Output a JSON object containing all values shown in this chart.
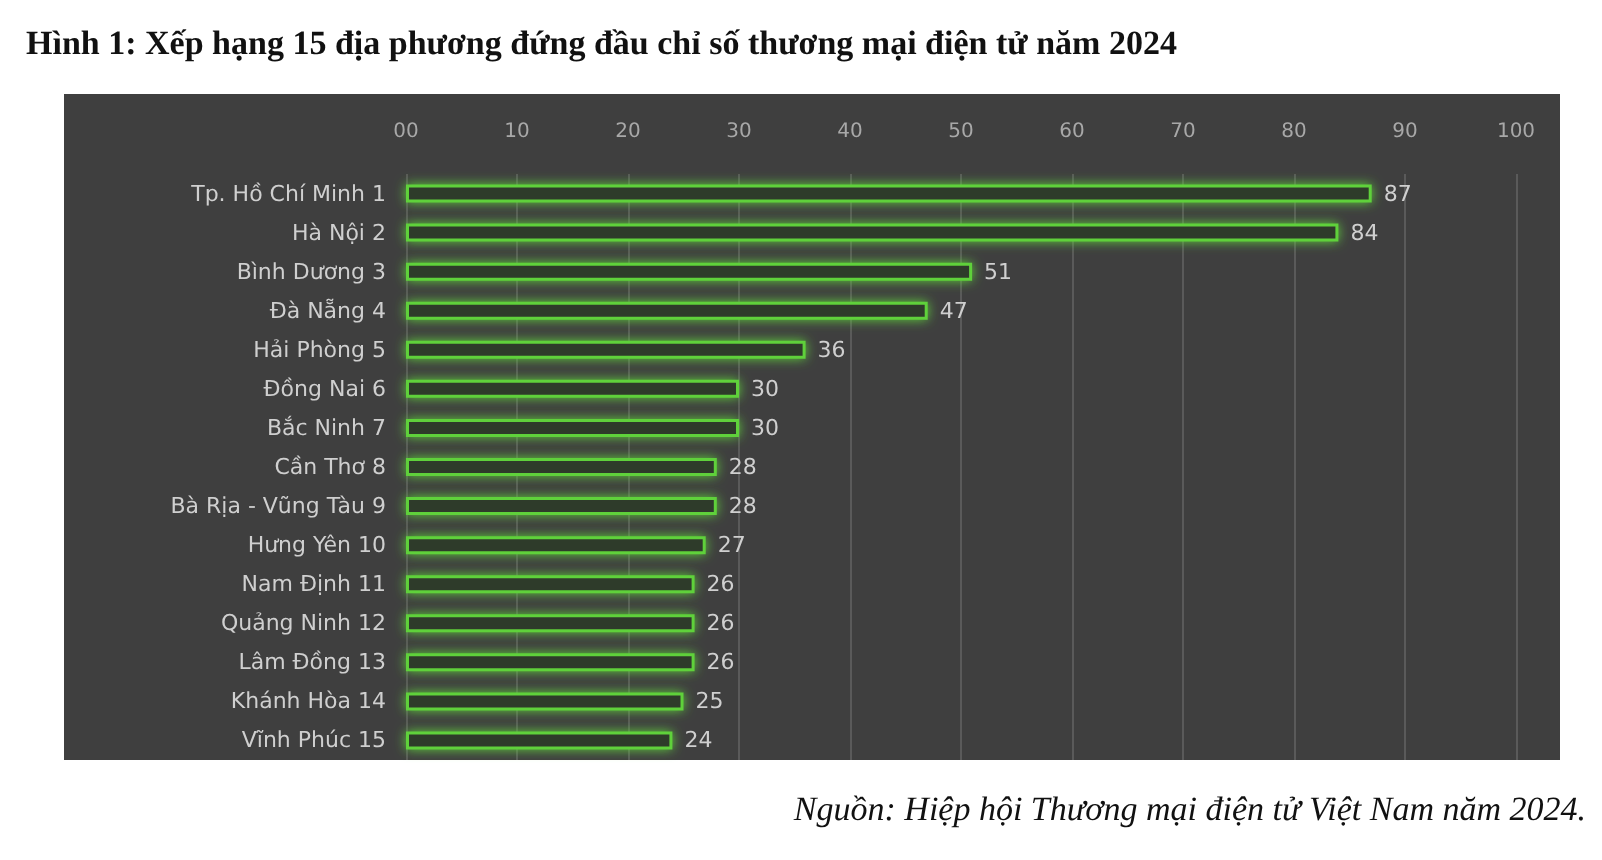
{
  "chart_data": {
    "type": "bar",
    "orientation": "horizontal",
    "title": "Hình 1: Xếp hạng 15 địa phương đứng đầu chỉ số thương mại điện tử năm 2024",
    "categories": [
      "Tp. Hồ Chí Minh 1",
      "Hà Nội 2",
      "Bình Dương 3",
      "Đà Nẵng 4",
      "Hải Phòng 5",
      "Đồng Nai 6",
      "Bắc Ninh 7",
      "Cần Thơ 8",
      "Bà Rịa - Vũng Tàu 9",
      "Hưng Yên 10",
      "Nam Định 11",
      "Quảng Ninh 12",
      "Lâm Đồng 13",
      "Khánh Hòa 14",
      "Vĩnh Phúc 15"
    ],
    "values": [
      87,
      84,
      51,
      47,
      36,
      30,
      30,
      28,
      28,
      27,
      26,
      26,
      26,
      25,
      24
    ],
    "color": "#5fd13a",
    "xlim": [
      0,
      100
    ],
    "xticks": [
      {
        "value": 0,
        "label": "00"
      },
      10,
      20,
      30,
      40,
      50,
      60,
      70,
      80,
      90,
      100
    ],
    "grid": "x",
    "data_labels": true,
    "annotations": [
      "Nguồn: Hiệp hội Thương mại điện tử Việt Nam năm 2024."
    ]
  }
}
